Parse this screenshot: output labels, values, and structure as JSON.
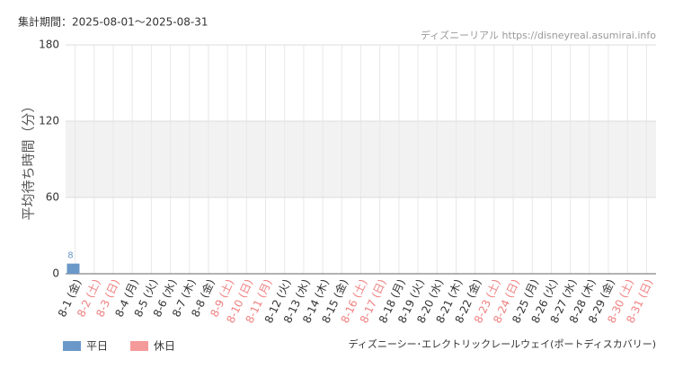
{
  "header": "集計期間：2025-08-01～2025-08-31",
  "source": "ディズニーリアル https://disneyreal.asumirai.info",
  "footer": "ディズニーシー･エレクトリックレールウェイ(ポートディスカバリー)",
  "chart_data": {
    "type": "bar",
    "ylabel": "平均待ち時間（分）",
    "categories": [
      "8-1 (金)",
      "8-2 (土)",
      "8-3 (日)",
      "8-4 (月)",
      "8-5 (火)",
      "8-6 (水)",
      "8-7 (木)",
      "8-8 (金)",
      "8-9 (土)",
      "8-10 (日)",
      "8-11 (月)",
      "8-12 (火)",
      "8-13 (水)",
      "8-14 (木)",
      "8-15 (金)",
      "8-16 (土)",
      "8-17 (日)",
      "8-18 (月)",
      "8-19 (火)",
      "8-20 (水)",
      "8-21 (木)",
      "8-22 (金)",
      "8-23 (土)",
      "8-24 (日)",
      "8-25 (月)",
      "8-26 (火)",
      "8-27 (水)",
      "8-28 (木)",
      "8-29 (金)",
      "8-30 (土)",
      "8-31 (日)"
    ],
    "category_colors": [
      "#333",
      "#f08080",
      "#f08080",
      "#333",
      "#333",
      "#333",
      "#333",
      "#333",
      "#f08080",
      "#f08080",
      "#f08080",
      "#333",
      "#333",
      "#333",
      "#333",
      "#f08080",
      "#f08080",
      "#333",
      "#333",
      "#333",
      "#333",
      "#333",
      "#f08080",
      "#f08080",
      "#333",
      "#333",
      "#333",
      "#333",
      "#333",
      "#f08080",
      "#f08080"
    ],
    "series": [
      {
        "name": "平日",
        "color": "#6a98c8",
        "values": [
          8,
          null,
          null,
          null,
          null,
          null,
          null,
          null,
          null,
          null,
          null,
          null,
          null,
          null,
          null,
          null,
          null,
          null,
          null,
          null,
          null,
          null,
          null,
          null,
          null,
          null,
          null,
          null,
          null,
          null,
          null
        ]
      },
      {
        "name": "休日",
        "color": "#f59a9a",
        "values": [
          null,
          null,
          null,
          null,
          null,
          null,
          null,
          null,
          null,
          null,
          null,
          null,
          null,
          null,
          null,
          null,
          null,
          null,
          null,
          null,
          null,
          null,
          null,
          null,
          null,
          null,
          null,
          null,
          null,
          null,
          null
        ]
      }
    ],
    "ylim": [
      0,
      180
    ],
    "yticks": [
      0,
      60,
      120,
      180
    ],
    "band": [
      60,
      120
    ],
    "grid": true
  }
}
